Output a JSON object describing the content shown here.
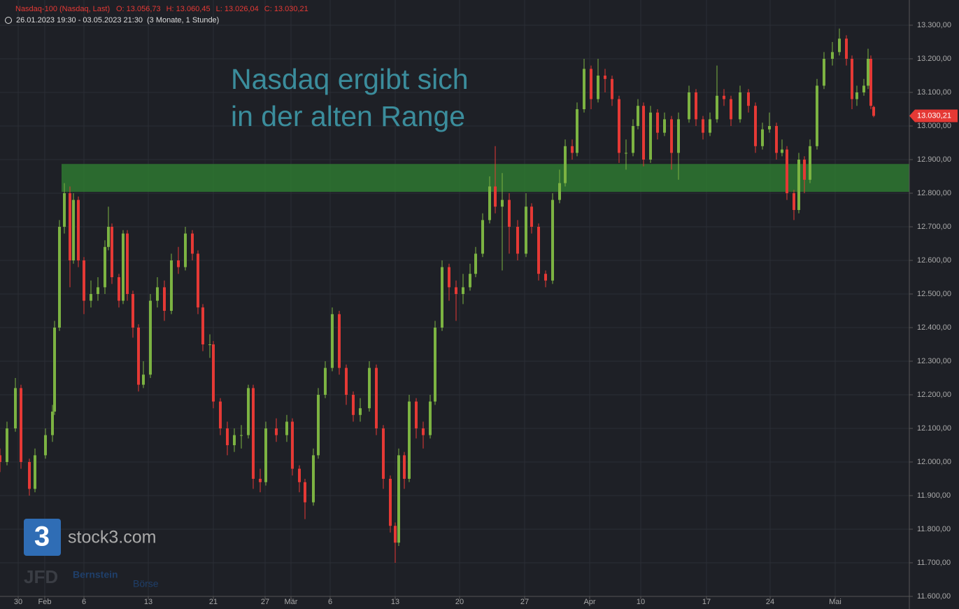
{
  "chart_data": {
    "type": "candlestick",
    "title": "Nasdaq-100 (Nasdaq, Last)",
    "info": [
      "O: 13.056,73",
      "H: 13.060,45",
      "L: 13.026,04",
      "C: 13.030,21"
    ],
    "period": "26.01.2023 19:30 - 03.05.2023 21:30",
    "period_note": "(3 Monate, 1 Stunde)",
    "annotation": [
      "Nasdaq ergibt sich",
      "in der alten Range"
    ],
    "zone": {
      "from": 12804,
      "to": 12887,
      "start": 88,
      "color": "#2e7d32"
    },
    "last_price": {
      "value": 13030.21,
      "label": "13.030,21"
    },
    "up_color": "#7cb342",
    "down_color": "#e53935",
    "grid": true,
    "xlim": [
      0,
      1300
    ],
    "ylim": [
      11600,
      13375
    ],
    "xticks": [
      {
        "value": 26,
        "label": "30"
      },
      {
        "value": 64,
        "label": "Feb"
      },
      {
        "value": 120,
        "label": "6"
      },
      {
        "value": 212,
        "label": "13"
      },
      {
        "value": 305,
        "label": "21"
      },
      {
        "value": 379,
        "label": "27"
      },
      {
        "value": 416,
        "label": "Mär"
      },
      {
        "value": 472,
        "label": "6"
      },
      {
        "value": 565,
        "label": "13"
      },
      {
        "value": 657,
        "label": "20"
      },
      {
        "value": 750,
        "label": "27"
      },
      {
        "value": 843,
        "label": "Apr"
      },
      {
        "value": 916,
        "label": "10"
      },
      {
        "value": 1010,
        "label": "17"
      },
      {
        "value": 1101,
        "label": "24"
      },
      {
        "value": 1194,
        "label": "Mai"
      }
    ],
    "yticks": [
      {
        "value": 13300,
        "label": "13.300,00"
      },
      {
        "value": 13200,
        "label": "13.200,00"
      },
      {
        "value": 13100,
        "label": "13.100,00"
      },
      {
        "value": 13000,
        "label": "13.000,00"
      },
      {
        "value": 12900,
        "label": "12.900,00"
      },
      {
        "value": 12800,
        "label": "12.800,00"
      },
      {
        "value": 12700,
        "label": "12.700,00"
      },
      {
        "value": 12600,
        "label": "12.600,00"
      },
      {
        "value": 12500,
        "label": "12.500,00"
      },
      {
        "value": 12400,
        "label": "12.400,00"
      },
      {
        "value": 12300,
        "label": "12.300,00"
      },
      {
        "value": 12200,
        "label": "12.200,00"
      },
      {
        "value": 12100,
        "label": "12.100,00"
      },
      {
        "value": 12000,
        "label": "12.000,00"
      },
      {
        "value": 11900,
        "label": "11.900,00"
      },
      {
        "value": 11800,
        "label": "11.800,00"
      },
      {
        "value": 11700,
        "label": "11.700,00"
      },
      {
        "value": 11600,
        "label": "11.600,00"
      }
    ],
    "x": [
      0,
      10,
      22,
      30,
      42,
      50,
      65,
      75,
      78,
      85,
      92,
      100,
      105,
      112,
      120,
      130,
      140,
      150,
      155,
      160,
      170,
      176,
      182,
      190,
      198,
      205,
      215,
      225,
      235,
      245,
      255,
      265,
      275,
      283,
      290,
      300,
      305,
      315,
      325,
      335,
      345,
      355,
      362,
      372,
      380,
      395,
      410,
      418,
      428,
      436,
      448,
      455,
      465,
      475,
      485,
      495,
      505,
      515,
      528,
      538,
      548,
      558,
      565,
      570,
      578,
      585,
      595,
      605,
      615,
      622,
      632,
      642,
      652,
      662,
      672,
      680,
      690,
      700,
      708,
      718,
      728,
      740,
      752,
      760,
      770,
      780,
      790,
      800,
      808,
      818,
      825,
      835,
      845,
      855,
      865,
      875,
      885,
      895,
      905,
      912,
      920,
      930,
      940,
      950,
      960,
      970,
      985,
      995,
      1005,
      1015,
      1025,
      1035,
      1045,
      1058,
      1070,
      1080,
      1090,
      1100,
      1110,
      1118,
      1125,
      1135,
      1142,
      1150,
      1158,
      1168,
      1178,
      1190,
      1200,
      1210,
      1218,
      1225,
      1235,
      1241,
      1245,
      1249
    ],
    "open": [
      12020,
      12000,
      12100,
      12220,
      12000,
      11920,
      12020,
      12080,
      12150,
      12400,
      12700,
      12800,
      12600,
      12780,
      12600,
      12480,
      12500,
      12520,
      12640,
      12700,
      12550,
      12480,
      12680,
      12500,
      12400,
      12230,
      12260,
      12480,
      12520,
      12450,
      12600,
      12580,
      12680,
      12620,
      12460,
      12350,
      12350,
      12180,
      12100,
      12050,
      12080,
      12080,
      12220,
      11950,
      11940,
      12100,
      12080,
      12120,
      11980,
      11940,
      11880,
      12020,
      12200,
      12280,
      12440,
      12280,
      12200,
      12140,
      12160,
      12280,
      12100,
      11950,
      11810,
      11760,
      12020,
      11950,
      12180,
      12100,
      12080,
      12180,
      12400,
      12580,
      12520,
      12500,
      12520,
      12560,
      12620,
      12720,
      12820,
      12760,
      12780,
      12700,
      12620,
      12760,
      12700,
      12560,
      12540,
      12780,
      12830,
      12940,
      12920,
      13050,
      13170,
      13080,
      13150,
      13140,
      13080,
      12920,
      12920,
      13000,
      13060,
      12900,
      13040,
      12980,
      13020,
      12920,
      13020,
      13100,
      13020,
      12980,
      13020,
      13090,
      13080,
      13020,
      13100,
      13060,
      12940,
      12990,
      13000,
      12920,
      12930,
      12800,
      12750,
      12900,
      12840,
      12940,
      13120,
      13200,
      13220,
      13260,
      13200,
      13080,
      13100,
      13120,
      13200,
      13056.73
    ],
    "high": [
      12040,
      12120,
      12250,
      12230,
      12010,
      12040,
      12100,
      12170,
      12420,
      12720,
      12830,
      12820,
      12800,
      12790,
      12610,
      12540,
      12550,
      12660,
      12760,
      12710,
      12560,
      12690,
      12690,
      12510,
      12410,
      12300,
      12500,
      12550,
      12540,
      12620,
      12640,
      12700,
      12690,
      12630,
      12470,
      12380,
      12360,
      12190,
      12120,
      12100,
      12110,
      12230,
      12230,
      11980,
      12120,
      12130,
      12140,
      12130,
      11990,
      11950,
      12040,
      12220,
      12300,
      12460,
      12450,
      12290,
      12210,
      12190,
      12300,
      12290,
      12110,
      11960,
      11820,
      12040,
      12030,
      12200,
      12190,
      12120,
      12200,
      12420,
      12600,
      12590,
      12540,
      12560,
      12590,
      12640,
      12740,
      12850,
      12940,
      12860,
      12800,
      12720,
      12800,
      12770,
      12710,
      12570,
      12800,
      12870,
      12960,
      12960,
      13070,
      13200,
      13180,
      13200,
      13170,
      13150,
      13090,
      12960,
      13020,
      13080,
      13070,
      13060,
      13050,
      13040,
      13030,
      13040,
      13120,
      13110,
      13030,
      13040,
      13180,
      13110,
      13090,
      13120,
      13110,
      13070,
      13010,
      13040,
      13010,
      12960,
      12940,
      12810,
      12920,
      12910,
      12960,
      13140,
      13220,
      13250,
      13290,
      13270,
      13210,
      13120,
      13140,
      13230,
      13210,
      13060.45
    ],
    "low": [
      11970,
      11990,
      12090,
      11980,
      11900,
      11910,
      12010,
      12060,
      12140,
      12390,
      12680,
      12520,
      12590,
      12580,
      12440,
      12460,
      12480,
      12500,
      12630,
      12530,
      12460,
      12470,
      12480,
      12370,
      12210,
      12220,
      12250,
      12460,
      12420,
      12440,
      12560,
      12570,
      12600,
      12440,
      12330,
      12310,
      12160,
      12080,
      12020,
      12030,
      12040,
      12070,
      11920,
      11910,
      11930,
      12060,
      12060,
      11960,
      11910,
      11830,
      11870,
      12010,
      12190,
      12270,
      12260,
      12170,
      12120,
      12120,
      12150,
      12080,
      11920,
      11790,
      11700,
      11750,
      11920,
      11940,
      12070,
      12040,
      12070,
      12170,
      12390,
      12480,
      12420,
      12470,
      12510,
      12550,
      12610,
      12710,
      12740,
      12570,
      12620,
      12600,
      12610,
      12680,
      12540,
      12520,
      12530,
      12770,
      12820,
      12900,
      12910,
      13040,
      13050,
      13070,
      13100,
      13060,
      12890,
      12870,
      12910,
      12990,
      12880,
      12890,
      12960,
      12970,
      12870,
      12840,
      13010,
      13000,
      12960,
      12970,
      13010,
      13060,
      13000,
      13010,
      13040,
      12920,
      12930,
      12980,
      12900,
      12910,
      12780,
      12720,
      12740,
      12800,
      12830,
      12930,
      13110,
      13180,
      13210,
      13180,
      13050,
      13060,
      13090,
      13110,
      13050,
      13026.04
    ],
    "close": [
      12000,
      12100,
      12220,
      12000,
      11920,
      12020,
      12080,
      12150,
      12400,
      12700,
      12800,
      12600,
      12780,
      12600,
      12480,
      12500,
      12520,
      12640,
      12700,
      12550,
      12480,
      12680,
      12500,
      12400,
      12230,
      12260,
      12480,
      12520,
      12450,
      12600,
      12580,
      12680,
      12620,
      12460,
      12350,
      12350,
      12180,
      12100,
      12050,
      12080,
      12080,
      12220,
      11950,
      11940,
      12100,
      12080,
      12120,
      11980,
      11940,
      11880,
      12020,
      12200,
      12280,
      12440,
      12280,
      12200,
      12140,
      12160,
      12280,
      12100,
      11950,
      11810,
      11760,
      12020,
      11950,
      12180,
      12100,
      12080,
      12180,
      12400,
      12580,
      12520,
      12500,
      12520,
      12560,
      12620,
      12720,
      12820,
      12760,
      12780,
      12700,
      12620,
      12760,
      12700,
      12560,
      12540,
      12780,
      12830,
      12940,
      12920,
      13050,
      13170,
      13080,
      13150,
      13140,
      13080,
      12920,
      12920,
      13000,
      13060,
      12900,
      13040,
      12980,
      13020,
      12920,
      13020,
      13100,
      13020,
      12980,
      13020,
      13090,
      13080,
      13020,
      13100,
      13060,
      12940,
      12990,
      13000,
      12920,
      12930,
      12800,
      12750,
      12900,
      12840,
      12940,
      13120,
      13200,
      13220,
      13260,
      13200,
      13080,
      13100,
      13120,
      13200,
      13060,
      13030.21
    ]
  },
  "watermark": {
    "logo": "3",
    "brand": "stock3.com",
    "partner1": "JFD",
    "partner2": "Bernstein",
    "partner3": "Börse"
  }
}
